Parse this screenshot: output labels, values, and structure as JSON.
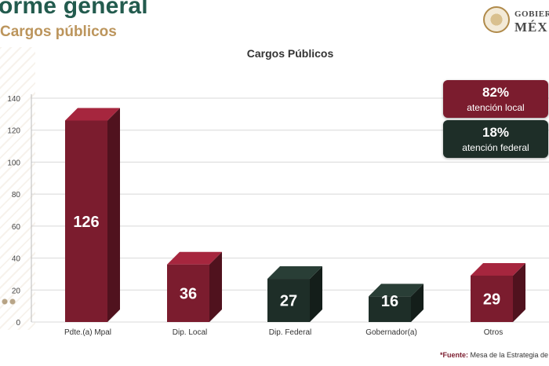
{
  "header": {
    "title": "orme general",
    "subtitle": "Cargos públicos"
  },
  "logo": {
    "top_text": "GOBIERNO",
    "bottom_text": "MÉX"
  },
  "callouts": {
    "local": {
      "pct": "82%",
      "label": "atención local",
      "color": "#7b1c2e"
    },
    "federal": {
      "pct": "18%",
      "label": "atención federal",
      "color": "#1e2e28"
    }
  },
  "footer": {
    "source_label": "*Fuente:",
    "source_text": " Mesa de la Estrategia de Pr"
  },
  "chart_data": {
    "type": "bar",
    "title": "Cargos Públicos",
    "categories": [
      "Pdte.(a) Mpal",
      "Dip. Local",
      "Dip. Federal",
      "Gobernador(a)",
      "Otros"
    ],
    "values": [
      126,
      36,
      27,
      16,
      29
    ],
    "value_labels": [
      "126",
      "36",
      "27",
      "16",
      "29"
    ],
    "bar_colors": [
      "#7b1c2e",
      "#7b1c2e",
      "#1e2e28",
      "#1e2e28",
      "#7b1c2e"
    ],
    "ylim": [
      0,
      140
    ],
    "yticks": [
      0,
      20,
      40,
      60,
      80,
      100,
      120,
      140
    ],
    "grid": true,
    "xlabel": "",
    "ylabel": ""
  }
}
